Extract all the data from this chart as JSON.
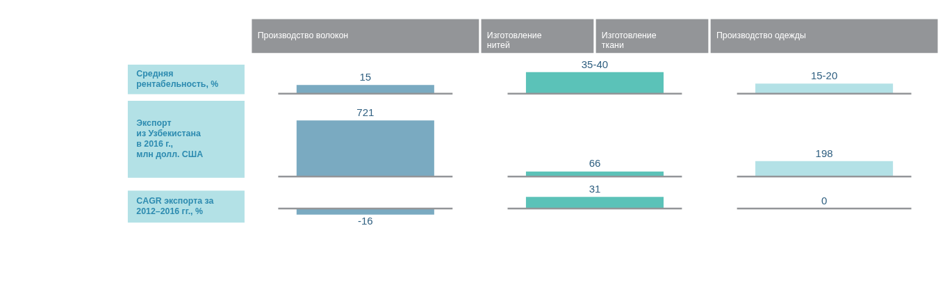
{
  "chart_data": [
    {
      "type": "bar",
      "title": "Средняя\nрентабельность, %",
      "categories": [
        null,
        null,
        null
      ],
      "values": [
        15,
        37.5,
        17.5
      ],
      "colors": [
        "#7aaac1",
        "#5bc2b8",
        "#b3e1e6"
      ],
      "value_labels": [
        "15",
        "35-40",
        "15-20"
      ],
      "ref_lines": [
        {
          "axis": "y",
          "value": 0,
          "color": "#939598"
        }
      ],
      "annotations": [
        "Производство волокон",
        "Изготовление\nнитей",
        "Изготовление\nткани",
        "Производство одежды"
      ]
    },
    {
      "type": "bar",
      "title": "Экспорт\nиз Узбекистана\nв 2016 г.,\nмлн долл. США",
      "categories": [
        null,
        null,
        null
      ],
      "values": [
        721,
        66,
        198
      ],
      "colors": [
        "#7aaac1",
        "#5bc2b8",
        "#b3e1e6"
      ],
      "value_labels": [
        "721",
        "66",
        "198"
      ],
      "ref_lines": [
        {
          "axis": "y",
          "value": 0,
          "color": "#939598"
        }
      ]
    },
    {
      "type": "bar",
      "title": "CAGR экспорта за\n2012–2016 гг., %",
      "categories": [
        null,
        null,
        null
      ],
      "values": [
        -16,
        31,
        0
      ],
      "colors": [
        "#7aaac1",
        "#5bc2b8",
        "#b3e1e6"
      ],
      "value_labels": [
        "-16",
        "31",
        "0"
      ],
      "ref_lines": [
        {
          "axis": "y",
          "value": 0,
          "color": "#939598"
        }
      ]
    }
  ]
}
